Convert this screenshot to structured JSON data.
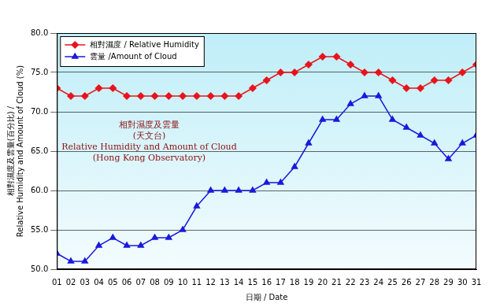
{
  "chart_data": {
    "type": "line",
    "categories": [
      "01",
      "02",
      "03",
      "04",
      "05",
      "06",
      "07",
      "08",
      "09",
      "10",
      "11",
      "12",
      "13",
      "14",
      "15",
      "16",
      "17",
      "18",
      "19",
      "20",
      "21",
      "22",
      "23",
      "24",
      "25",
      "26",
      "27",
      "28",
      "29",
      "30",
      "31"
    ],
    "series": [
      {
        "name": "相對濕度 / Relative Humidity",
        "color": "#e8141c",
        "marker": "diamond",
        "values": [
          73,
          72,
          72,
          73,
          73,
          72,
          72,
          72,
          72,
          72,
          72,
          72,
          72,
          72,
          73,
          74,
          75,
          75,
          76,
          77,
          77,
          76,
          75,
          75,
          74,
          73,
          73,
          74,
          74,
          75,
          76
        ]
      },
      {
        "name": "雲量 /Amount of Cloud",
        "color": "#1a1adc",
        "marker": "triangle",
        "values": [
          52,
          51,
          51,
          53,
          54,
          53,
          53,
          54,
          54,
          55,
          58,
          60,
          60,
          60,
          60,
          61,
          61,
          63,
          66,
          69,
          69,
          71,
          72,
          72,
          69,
          68,
          67,
          66,
          64,
          66,
          67
        ]
      }
    ],
    "x_label": "日期 / Date",
    "y_label": [
      "相對濕度及雲量(百分比) /",
      "Relative Humidity and Amount of Cloud (%)"
    ],
    "annotation": [
      "相對濕度及雲量",
      "(天文台)",
      "Relative Humidity and Amount of Cloud",
      "(Hong Kong Observatory)"
    ],
    "ylim": [
      50,
      80
    ],
    "yticks": [
      {
        "value": 50,
        "label": "50.0"
      },
      {
        "value": 55,
        "label": "55.0"
      },
      {
        "value": 60,
        "label": "60.0"
      },
      {
        "value": 65,
        "label": "65.0"
      },
      {
        "value": 70,
        "label": "70.0"
      },
      {
        "value": 75,
        "label": "75.0"
      },
      {
        "value": 80,
        "label": "80.0"
      }
    ],
    "grid": true,
    "legend": "upper left"
  }
}
